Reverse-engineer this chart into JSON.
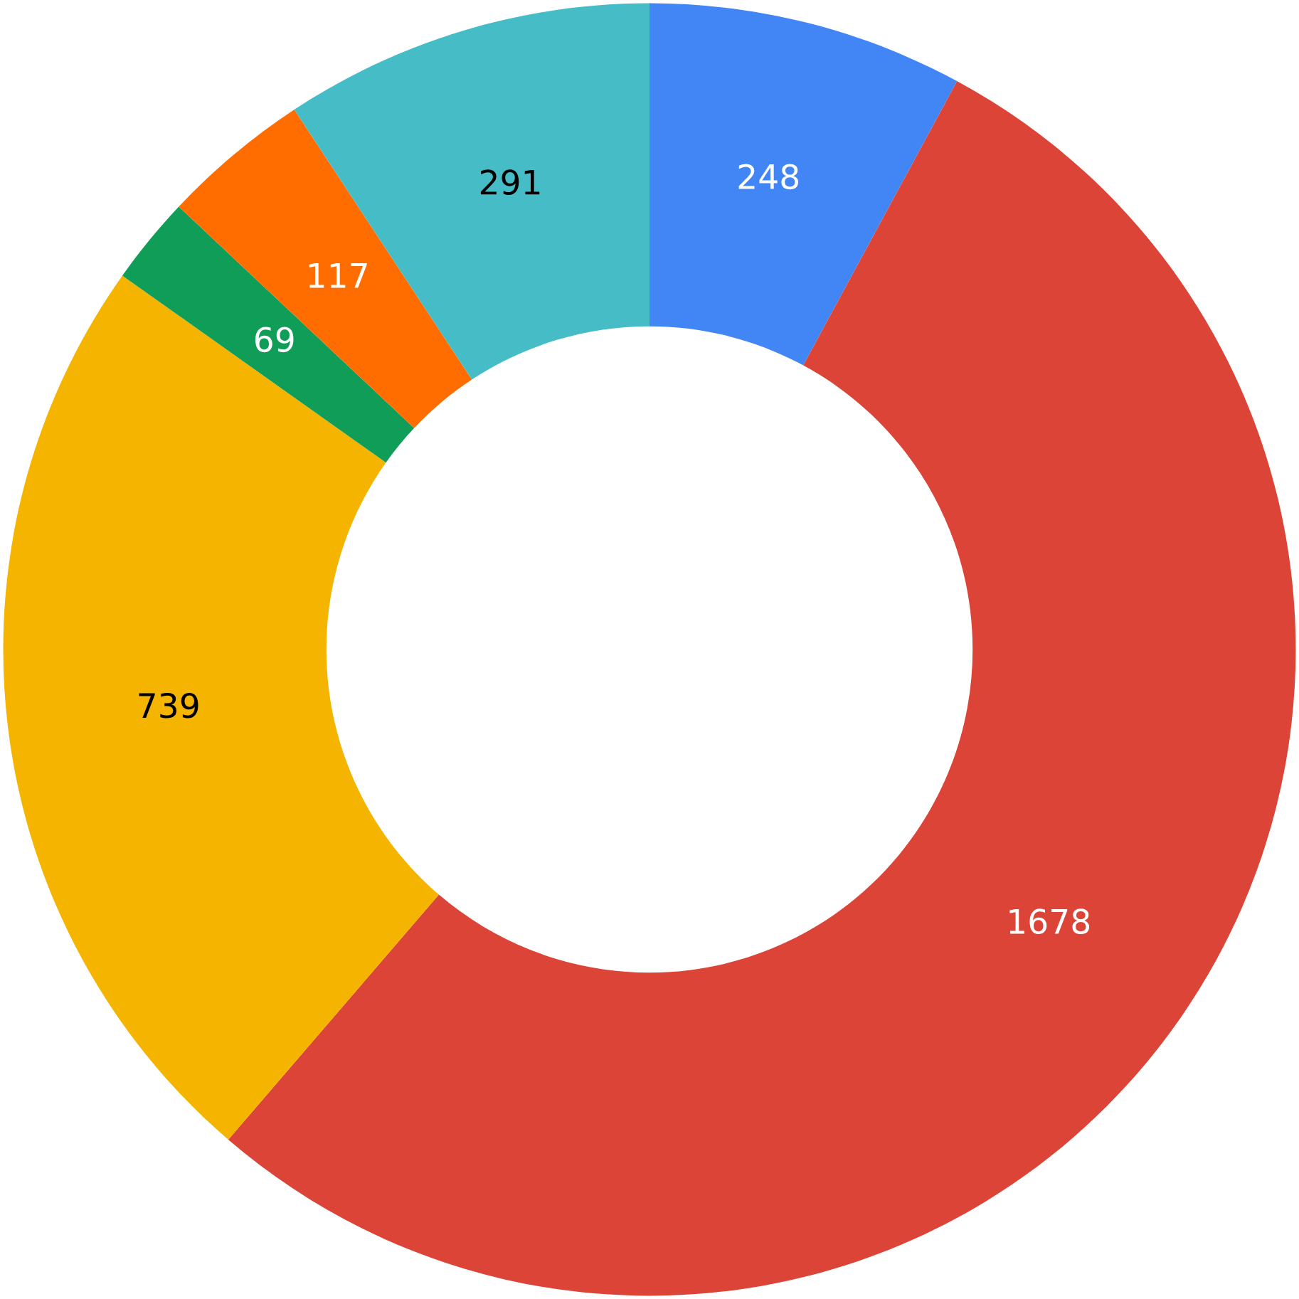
{
  "chart_data": {
    "type": "donut",
    "categories": [
      null,
      null,
      null,
      null,
      null,
      null
    ],
    "values": [
      248,
      1678,
      739,
      69,
      117,
      291
    ],
    "colors": [
      "#4285f4",
      "#db4437",
      "#f4b400",
      "#0f9d58",
      "#ff6d00",
      "#46bdc6"
    ],
    "data_labels": true
  }
}
